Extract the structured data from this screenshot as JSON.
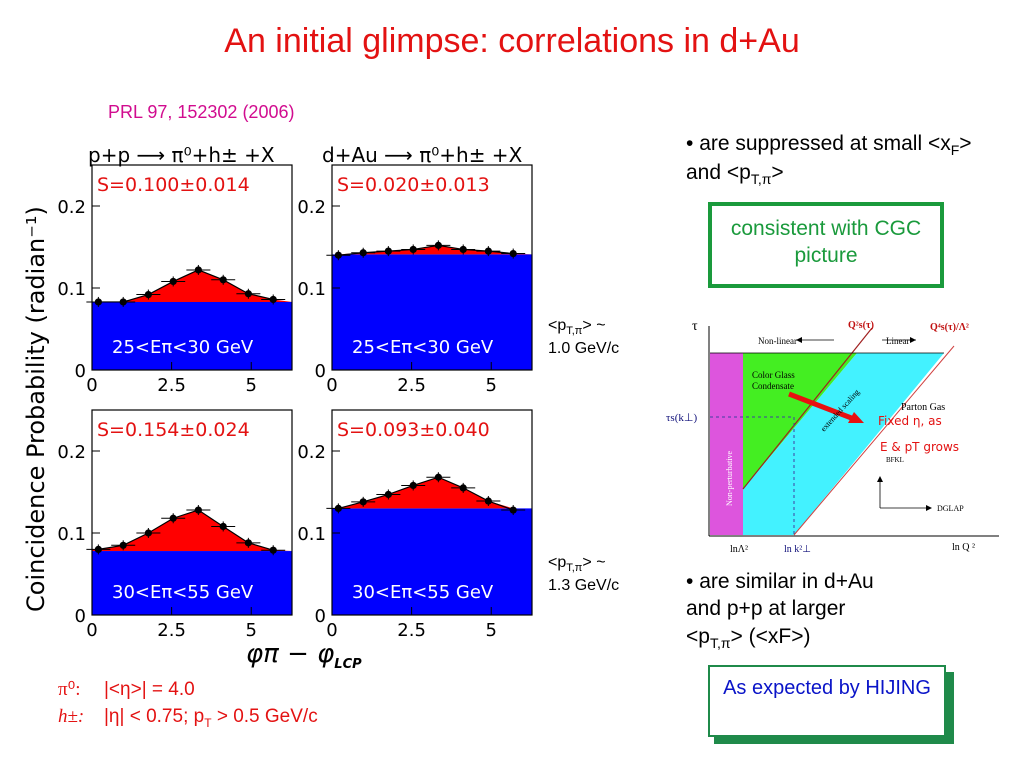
{
  "title": "An initial glimpse: correlations in d+Au",
  "reference": "PRL 97, 152302 (2006)",
  "colors": {
    "title": "#e31212",
    "reference": "#d10c8f",
    "fill_red": "#ff0000",
    "fill_blue": "#0000ff",
    "box_green": "#1a9a3c",
    "box_blue_text": "#0a14c8"
  },
  "figure": {
    "y_axis_label": "Coincidence Probability (radian⁻¹)",
    "x_axis_label_main": "φπ − φ",
    "x_axis_label_sub": "LCP",
    "col_left_header": "p+p ⟶ π⁰+h± +X",
    "col_right_header": "d+Au ⟶ π⁰+h± +X",
    "panels": [
      {
        "s_label": "S=0.100±0.014",
        "e_label": "25<Eπ<30 GeV"
      },
      {
        "s_label": "S=0.020±0.013",
        "e_label": "25<Eπ<30 GeV"
      },
      {
        "s_label": "S=0.154±0.024",
        "e_label": "30<Eπ<55 GeV"
      },
      {
        "s_label": "S=0.093±0.040",
        "e_label": "30<Eπ<55 GeV"
      }
    ],
    "x_ticks": [
      "0",
      "2.5",
      "5"
    ],
    "y_ticks": [
      "0",
      "0.1",
      "0.2"
    ],
    "pt_label_1": {
      "line1": "<pT,π> ~",
      "line2": "1.0 GeV/c"
    },
    "pt_label_2": {
      "line1": "<pT,π> ~",
      "line2": "1.3 GeV/c"
    }
  },
  "chart_data": [
    {
      "type": "bar",
      "title": "S=0.100±0.014",
      "xlabel": "φπ − φLCP",
      "ylabel": "Coincidence Probability (radian⁻¹)",
      "ylim": [
        0,
        0.25
      ],
      "xlim": [
        0,
        6.28
      ],
      "pedestal": 0.083,
      "x": [
        0.2,
        0.98,
        1.77,
        2.55,
        3.34,
        4.12,
        4.91,
        5.69
      ],
      "values": [
        0.083,
        0.083,
        0.092,
        0.108,
        0.122,
        0.11,
        0.093,
        0.086
      ]
    },
    {
      "type": "bar",
      "title": "S=0.020±0.013",
      "ylim": [
        0,
        0.25
      ],
      "xlim": [
        0,
        6.28
      ],
      "pedestal": 0.141,
      "x": [
        0.2,
        0.98,
        1.77,
        2.55,
        3.34,
        4.12,
        4.91,
        5.69
      ],
      "values": [
        0.14,
        0.143,
        0.145,
        0.147,
        0.152,
        0.147,
        0.145,
        0.142
      ]
    },
    {
      "type": "bar",
      "title": "S=0.154±0.024",
      "ylim": [
        0,
        0.25
      ],
      "xlim": [
        0,
        6.28
      ],
      "pedestal": 0.078,
      "x": [
        0.2,
        0.98,
        1.77,
        2.55,
        3.34,
        4.12,
        4.91,
        5.69
      ],
      "values": [
        0.08,
        0.085,
        0.1,
        0.118,
        0.128,
        0.108,
        0.088,
        0.079
      ]
    },
    {
      "type": "bar",
      "title": "S=0.093±0.040",
      "ylim": [
        0,
        0.25
      ],
      "xlim": [
        0,
        6.28
      ],
      "pedestal": 0.13,
      "x": [
        0.2,
        0.98,
        1.77,
        2.55,
        3.34,
        4.12,
        4.91,
        5.69
      ],
      "values": [
        0.13,
        0.138,
        0.147,
        0.158,
        0.168,
        0.155,
        0.139,
        0.128
      ]
    }
  ],
  "bullets": {
    "b1_text": "are suppressed at small <x",
    "b1_sub": "F",
    "b1_mid": "> and <p",
    "b1_sub2": "T,π",
    "b1_end": ">",
    "box1": "consistent with CGC picture",
    "b2_line1": "are similar in d+Au",
    "b2_line2": "and p+p at larger",
    "b2_line3a": "<p",
    "b2_line3sub": "T,π",
    "b2_line3b": "> (<xF>)",
    "box2": "As expected by HIJING"
  },
  "diagram": {
    "tau": "τ",
    "nonlinear": "Non-linear",
    "linear": "Linear",
    "qs2": "Q²s(τ)",
    "qs4": "Q⁴s(τ)/Λ²",
    "cgc": "Color Glass Condensate",
    "extended": "extended scaling",
    "parton": "Parton Gas",
    "nonpert": "Non-perturbative",
    "taus": "τs(k⊥)",
    "fixed1": "Fixed η, as",
    "fixed2": "E & pT grows",
    "bfkl": "BFKL",
    "dglap": "DGLAP",
    "lnlambda": "lnΛ²",
    "lnk": "ln k²⊥",
    "lnq": "ln Q ²"
  },
  "footer": {
    "line1_sym": "π⁰:",
    "line1_text": "|<η>| = 4.0",
    "line2_sym": "h±:",
    "line2_text": "|η| < 0.75; p",
    "line2_sub": "T",
    "line2_end": " > 0.5 GeV/c"
  }
}
